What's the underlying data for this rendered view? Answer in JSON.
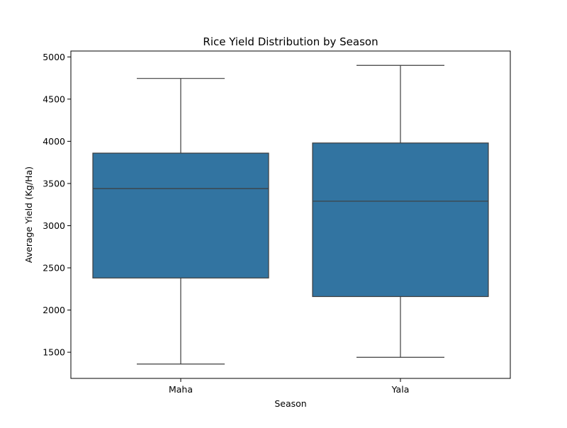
{
  "chart_data": {
    "type": "box",
    "title": "Rice Yield Distribution by Season",
    "xlabel": "Season",
    "ylabel": "Average Yield (Kg/Ha)",
    "ylim": [
      1190,
      5070
    ],
    "yticks": [
      1500,
      2000,
      2500,
      3000,
      3500,
      4000,
      4500,
      5000
    ],
    "grid": false,
    "categories": [
      "Maha",
      "Yala"
    ],
    "boxes": [
      {
        "category": "Maha",
        "whisker_low": 1360,
        "q1": 2380,
        "median": 3440,
        "q3": 3860,
        "whisker_high": 4745
      },
      {
        "category": "Yala",
        "whisker_low": 1440,
        "q1": 2160,
        "median": 3290,
        "q3": 3980,
        "whisker_high": 4900
      }
    ],
    "colors": {
      "box_fill": "#3274a1",
      "line": "#3d3d3d",
      "axis": "#000000"
    }
  }
}
